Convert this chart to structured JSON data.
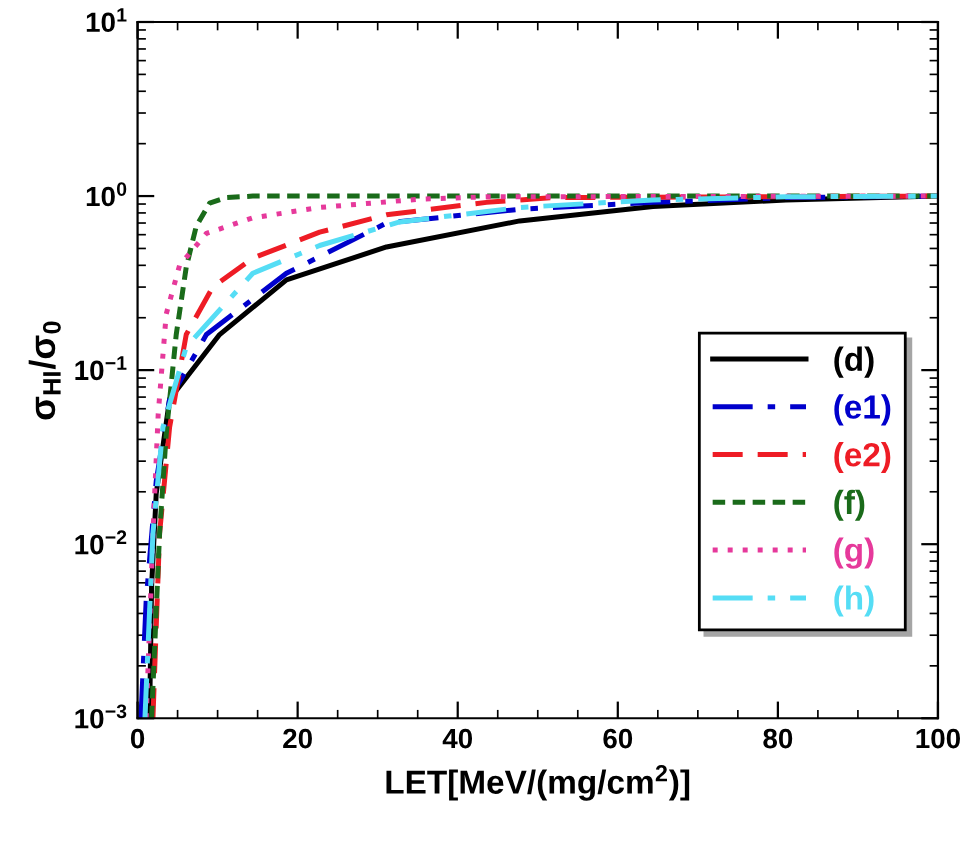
{
  "chart_data": {
    "type": "line",
    "xlabel": "LET[MeV/(mg/cm$^{2}$)]",
    "ylabel": "σ$_{HI}$/σ$_{0}$",
    "log": "y",
    "xlim": [
      0,
      100
    ],
    "xticks": [
      0,
      20,
      40,
      60,
      80,
      100
    ],
    "ylim": [
      0.001,
      10
    ],
    "yticks": [
      {
        "value": 0.001,
        "label": "10$^{−3}$"
      },
      {
        "value": 0.01,
        "label": "10$^{−2}$"
      },
      {
        "value": 0.1,
        "label": "10$^{−1}$"
      },
      {
        "value": 1,
        "label": "10$^{0}$"
      },
      {
        "value": 10,
        "label": "10$^{1}$"
      }
    ],
    "grid": false,
    "legend": "right",
    "marker": "none",
    "series": [
      {
        "name": "(d)",
        "color": "#000000",
        "line_style": "solid",
        "x": [
          1.5,
          1.75,
          2.33,
          4.0,
          10.25,
          18.6,
          31.1,
          47.75,
          64.4,
          81,
          100
        ],
        "values": [
          0.001,
          0.0057,
          0.0195,
          0.068,
          0.16,
          0.33,
          0.51,
          0.72,
          0.87,
          0.95,
          1.0
        ]
      },
      {
        "name": "(e1)",
        "color": "#0000cc",
        "line_style": "dashdot",
        "x": [
          0.42,
          1.08,
          2.33,
          4.0,
          8.6,
          18.6,
          31.1,
          47.75,
          64.4,
          81,
          100
        ],
        "values": [
          0.001,
          0.0048,
          0.023,
          0.068,
          0.16,
          0.36,
          0.7,
          0.84,
          0.92,
          0.98,
          1.0
        ]
      },
      {
        "name": "(e2)",
        "color": "#ee1c25",
        "line_style": "dashed",
        "x": [
          1.92,
          2.75,
          4.0,
          6.08,
          9.4,
          14.4,
          22.75,
          31.1,
          43.6,
          51.9,
          100
        ],
        "values": [
          0.001,
          0.0115,
          0.047,
          0.16,
          0.3,
          0.44,
          0.62,
          0.78,
          0.92,
          0.98,
          1.0
        ]
      },
      {
        "name": "(f)",
        "color": "#1a6b1a",
        "line_style": "shortdash",
        "x": [
          1.75,
          2.75,
          3.58,
          4.83,
          6.08,
          7.33,
          9.0,
          11.1,
          14.4,
          100
        ],
        "values": [
          0.001,
          0.0115,
          0.043,
          0.16,
          0.39,
          0.67,
          0.91,
          0.98,
          1.0,
          1.0
        ]
      },
      {
        "name": "(g)",
        "color": "#e6399b",
        "line_style": "dotted",
        "x": [
          1.08,
          1.92,
          2.58,
          3.58,
          5.25,
          8.6,
          14.4,
          22.75,
          35.25,
          43.6,
          100
        ],
        "values": [
          0.001,
          0.0115,
          0.056,
          0.21,
          0.4,
          0.61,
          0.75,
          0.86,
          0.96,
          0.99,
          1.0
        ]
      },
      {
        "name": "(h)",
        "color": "#55ddf5",
        "line_style": "dashdot",
        "x": [
          0.92,
          1.92,
          3.17,
          6.08,
          14.4,
          22.75,
          32.75,
          47.75,
          64.4,
          81,
          100
        ],
        "values": [
          0.001,
          0.0115,
          0.047,
          0.136,
          0.36,
          0.52,
          0.71,
          0.86,
          0.95,
          0.99,
          1.0
        ]
      }
    ]
  }
}
